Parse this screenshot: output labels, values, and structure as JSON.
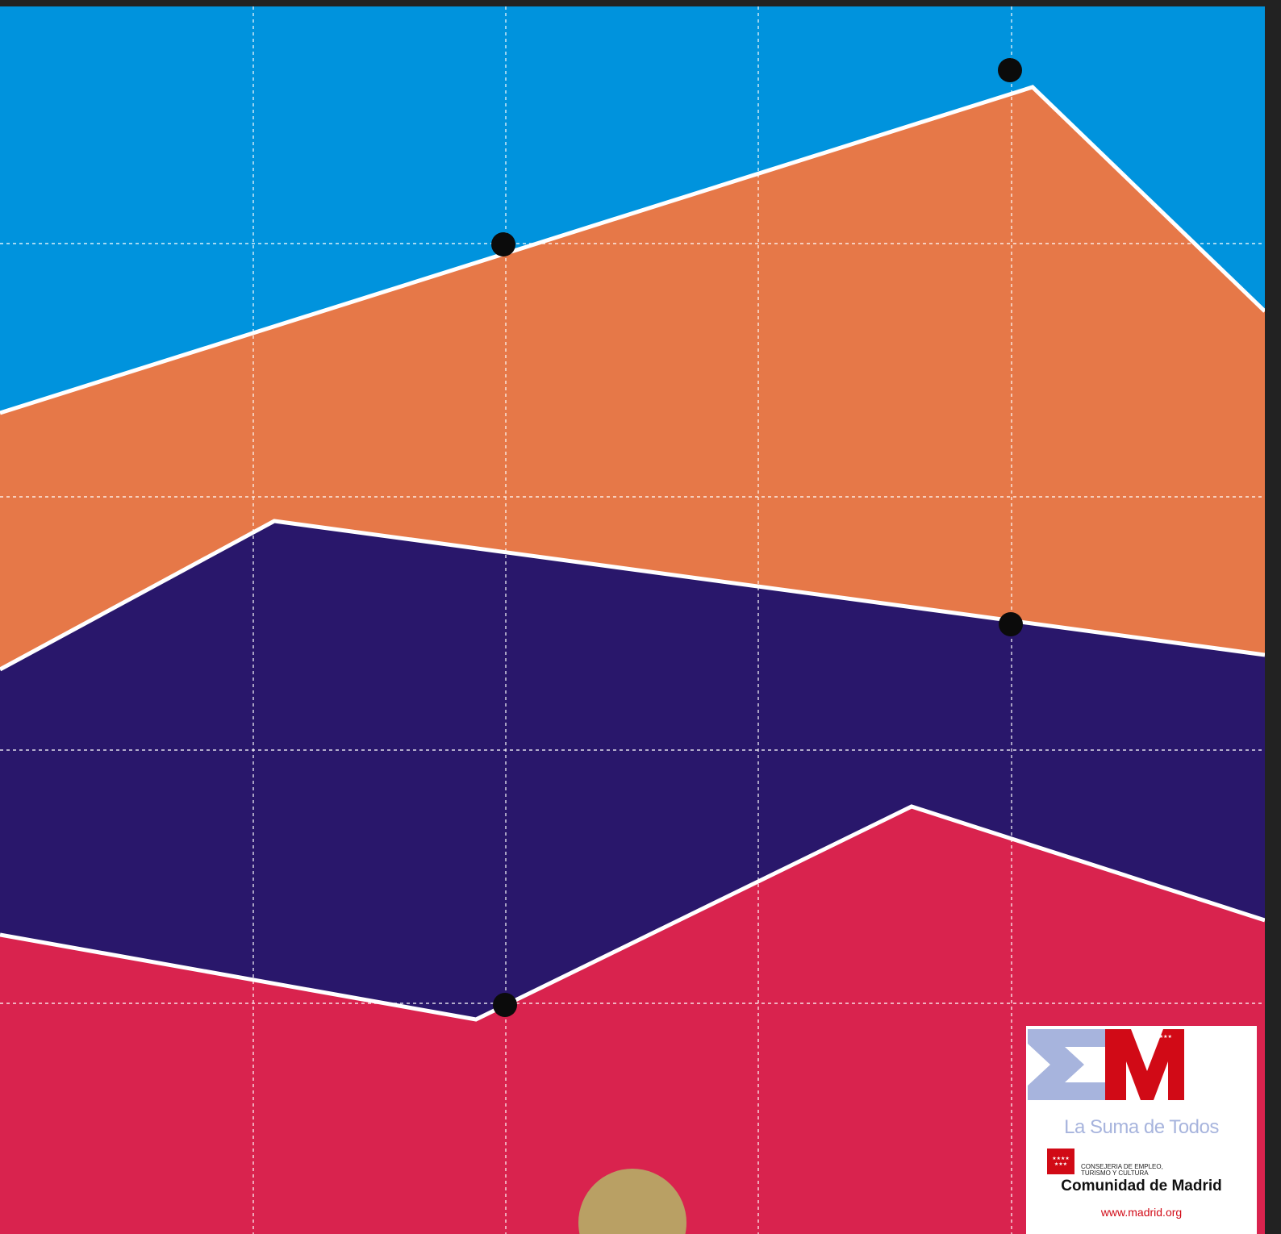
{
  "colors": {
    "frame_bar": "#222222",
    "top_band": "#0093dd",
    "orange_band": "#e67848",
    "purple_band": "#29176b",
    "red_band": "#d9234e",
    "line": "#ffffff",
    "grid": "#ffffff",
    "dot": "#0b0b0b",
    "half_circle": "#b9a064",
    "logo_card_bg": "#ffffff",
    "logo_blue": "#a7b4dd",
    "logo_red": "#d10a16"
  },
  "logo": {
    "tagline": "La Suma de Todos",
    "flag_stars": "★★★★\n★★★",
    "department": "CONSEJERIA DE EMPLEO,\nTURISMO Y CULTURA",
    "organization": "Comunidad de Madrid",
    "website": "www.madrid.org",
    "mark_stars": "★★★★★★★"
  }
}
